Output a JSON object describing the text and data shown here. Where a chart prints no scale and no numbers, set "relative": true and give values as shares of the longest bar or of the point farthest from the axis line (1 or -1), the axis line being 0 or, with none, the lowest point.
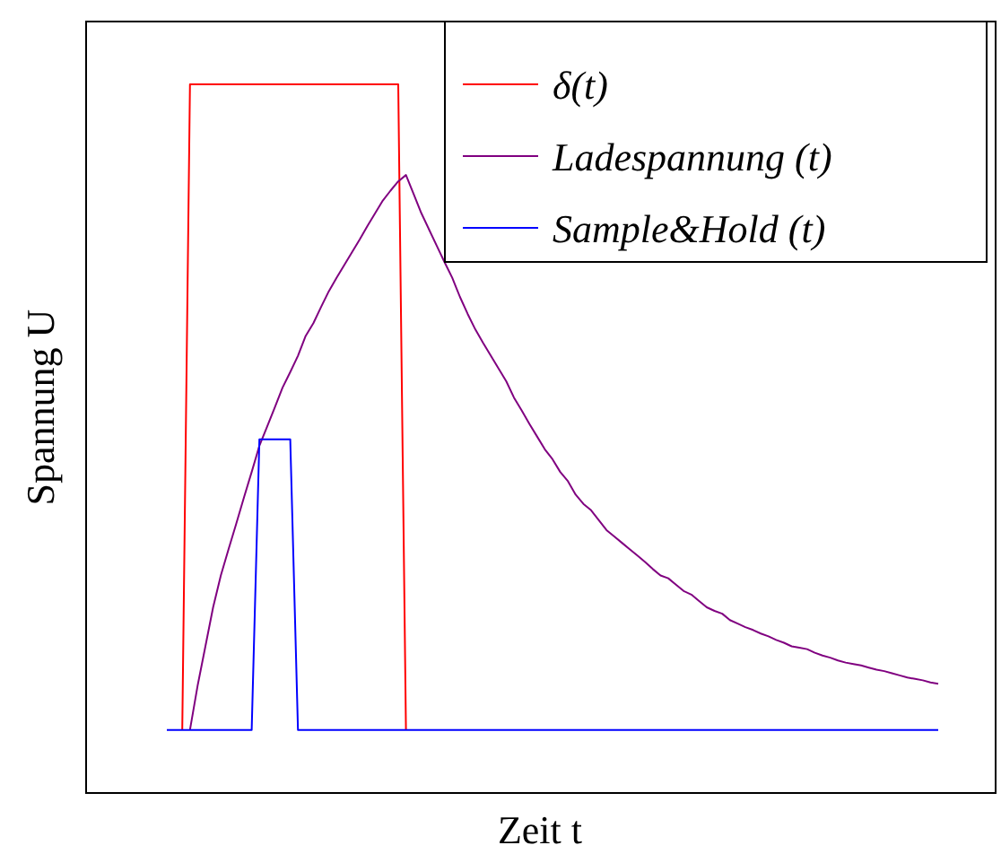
{
  "chart_data": {
    "type": "line",
    "xlabel": "Zeit t",
    "ylabel": "Spannung U",
    "relative": true,
    "legend": "top right",
    "categories": [
      null,
      null,
      null,
      null,
      null,
      null,
      null,
      null,
      null,
      null,
      null,
      null,
      null,
      null,
      null,
      null,
      null,
      null,
      null,
      null,
      null,
      null,
      null,
      null,
      null,
      null,
      null,
      null,
      null,
      null,
      null,
      null,
      null,
      null,
      null,
      null,
      null,
      null,
      null,
      null,
      null,
      null,
      null,
      null,
      null,
      null,
      null,
      null,
      null,
      null,
      null,
      null,
      null,
      null,
      null,
      null,
      null,
      null,
      null,
      null,
      null,
      null,
      null,
      null,
      null,
      null,
      null,
      null,
      null,
      null,
      null,
      null,
      null,
      null,
      null,
      null,
      null,
      null,
      null,
      null,
      null,
      null,
      null,
      null,
      null,
      null,
      null,
      null,
      null,
      null,
      null,
      null,
      null,
      null,
      null,
      null,
      null,
      null,
      null,
      null,
      null
    ],
    "series": [
      {
        "name": "δ(t)",
        "color": "#ff0000",
        "values": [
          null,
          null,
          0.089,
          1,
          1,
          1,
          1,
          1,
          1,
          1,
          1,
          1,
          1,
          1,
          1,
          1,
          1,
          1,
          1,
          1,
          1,
          1,
          1,
          1,
          1,
          1,
          1,
          1,
          1,
          1,
          1,
          0.089,
          null,
          null,
          null,
          null,
          null,
          null,
          null,
          null,
          null,
          null,
          null,
          null,
          null,
          null,
          null,
          null,
          null,
          null,
          null,
          null,
          null,
          null,
          null,
          null,
          null,
          null,
          null,
          null,
          null,
          null,
          null,
          null,
          null,
          null,
          null,
          null,
          null,
          null,
          null,
          null,
          null,
          null,
          null,
          null,
          null,
          null,
          null,
          null,
          null,
          null,
          null,
          null,
          null,
          null,
          null,
          null,
          null,
          null,
          null,
          null,
          null,
          null,
          null,
          null,
          null,
          null,
          null,
          null,
          null
        ]
      },
      {
        "name": "Ladespannung (t)",
        "color": "#800080",
        "values": [
          null,
          null,
          null,
          0.089,
          0.152,
          0.207,
          0.262,
          0.307,
          0.344,
          0.38,
          0.417,
          0.453,
          0.49,
          0.517,
          0.544,
          0.572,
          0.594,
          0.617,
          0.645,
          0.663,
          0.686,
          0.708,
          0.727,
          0.745,
          0.763,
          0.781,
          0.8,
          0.818,
          0.836,
          0.85,
          0.863,
          0.872,
          0.845,
          0.818,
          0.795,
          0.772,
          0.749,
          0.727,
          0.7,
          0.676,
          0.654,
          0.635,
          0.617,
          0.599,
          0.581,
          0.558,
          0.54,
          0.521,
          0.503,
          0.485,
          0.471,
          0.453,
          0.44,
          0.421,
          0.408,
          0.399,
          0.385,
          0.371,
          0.362,
          0.353,
          0.344,
          0.335,
          0.326,
          0.316,
          0.307,
          0.303,
          0.294,
          0.285,
          0.28,
          0.271,
          0.262,
          0.257,
          0.253,
          0.244,
          0.239,
          0.234,
          0.23,
          0.225,
          0.221,
          0.216,
          0.212,
          0.207,
          0.205,
          0.203,
          0.198,
          0.194,
          0.191,
          0.187,
          0.184,
          0.182,
          0.18,
          0.177,
          0.174,
          0.172,
          0.169,
          0.166,
          0.163,
          0.161,
          0.159,
          0.156,
          0.154
        ]
      },
      {
        "name": "Sample&Hold (t)",
        "color": "#0000ff",
        "values": [
          0.089,
          0.089,
          0.089,
          0.089,
          0.089,
          0.089,
          0.089,
          0.089,
          0.089,
          0.089,
          0.089,
          0.089,
          0.499,
          0.499,
          0.499,
          0.499,
          0.499,
          0.089,
          0.089,
          0.089,
          0.089,
          0.089,
          0.089,
          0.089,
          0.089,
          0.089,
          0.089,
          0.089,
          0.089,
          0.089,
          0.089,
          0.089,
          0.089,
          0.089,
          0.089,
          0.089,
          0.089,
          0.089,
          0.089,
          0.089,
          0.089,
          0.089,
          0.089,
          0.089,
          0.089,
          0.089,
          0.089,
          0.089,
          0.089,
          0.089,
          0.089,
          0.089,
          0.089,
          0.089,
          0.089,
          0.089,
          0.089,
          0.089,
          0.089,
          0.089,
          0.089,
          0.089,
          0.089,
          0.089,
          0.089,
          0.089,
          0.089,
          0.089,
          0.089,
          0.089,
          0.089,
          0.089,
          0.089,
          0.089,
          0.089,
          0.089,
          0.089,
          0.089,
          0.089,
          0.089,
          0.089,
          0.089,
          0.089,
          0.089,
          0.089,
          0.089,
          0.089,
          0.089,
          0.089,
          0.089,
          0.089,
          0.089,
          0.089,
          0.089,
          0.089,
          0.089,
          0.089,
          0.089,
          0.089,
          0.089,
          0.089
        ]
      }
    ]
  }
}
